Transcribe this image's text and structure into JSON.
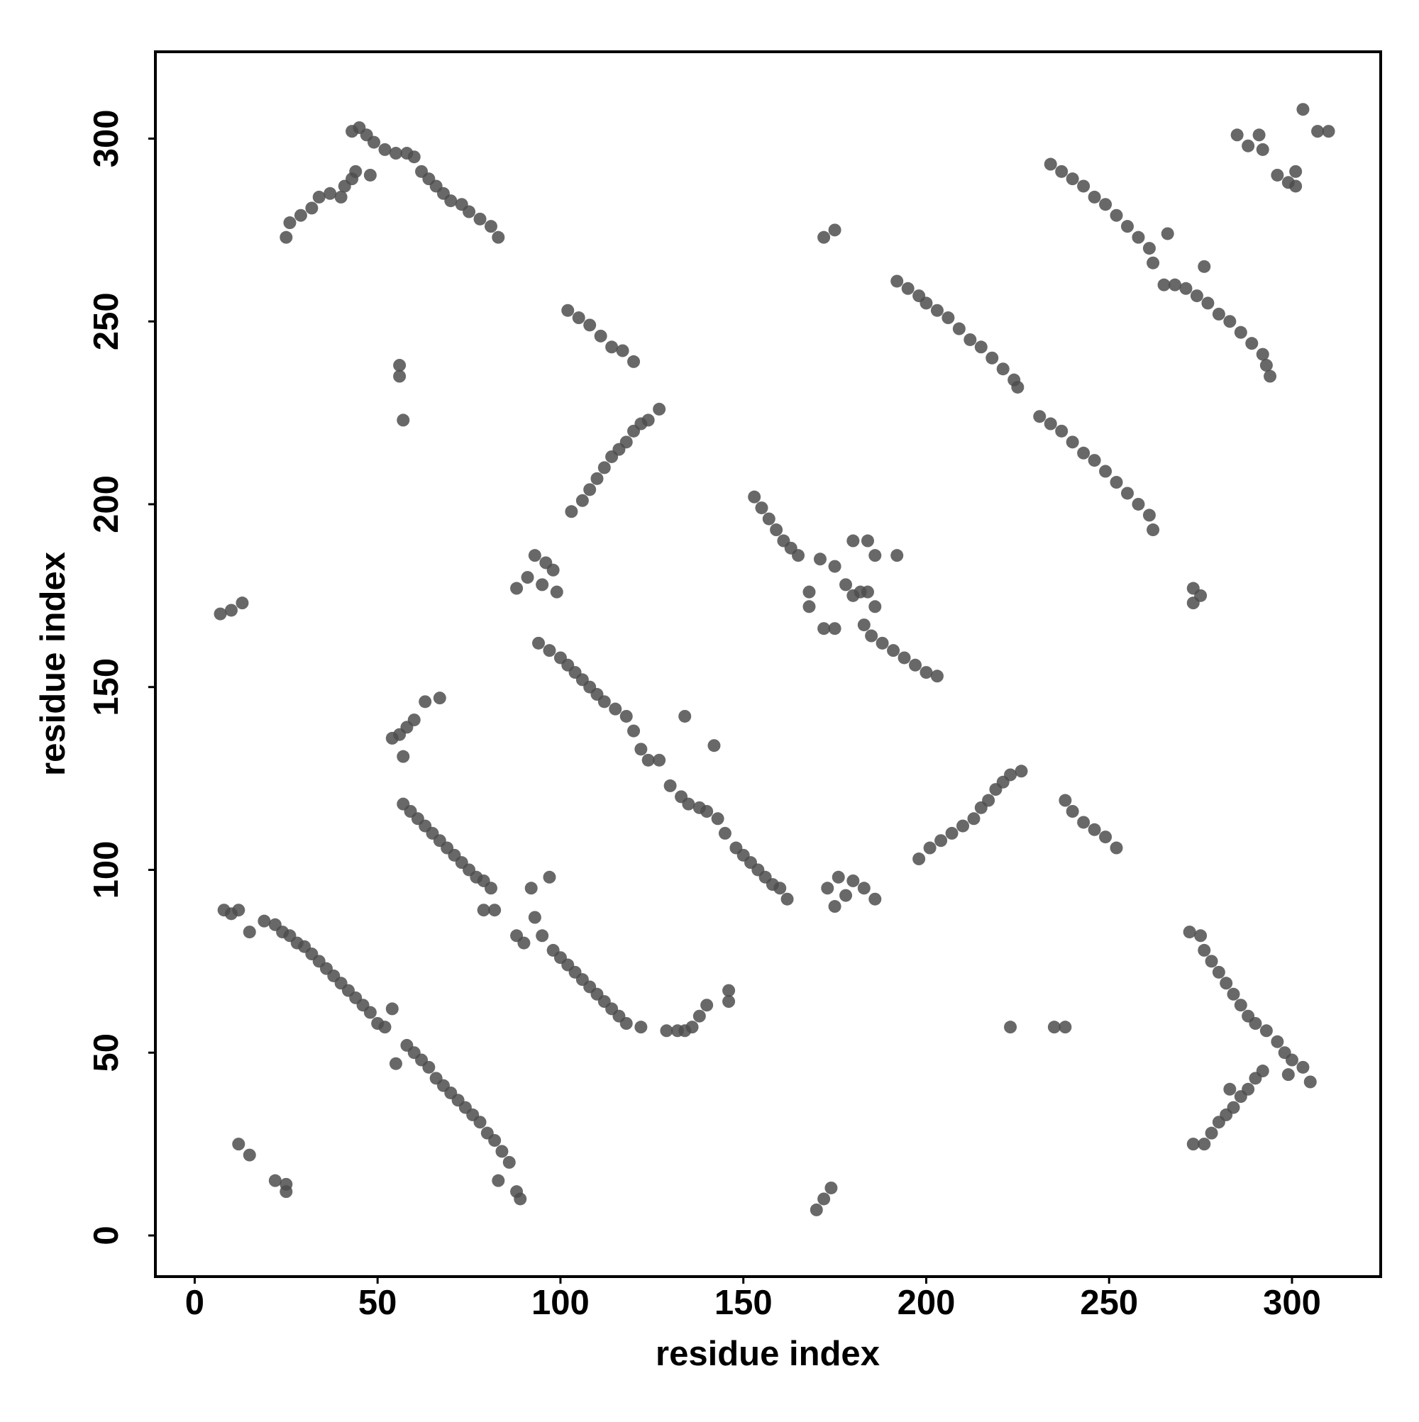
{
  "chart_data": {
    "type": "scatter",
    "xlabel": "residue index",
    "ylabel": "residue index",
    "x": [
      8,
      10,
      12,
      15,
      19,
      22,
      24,
      26,
      28,
      30,
      32,
      34,
      36,
      38,
      40,
      42,
      44,
      46,
      48,
      50,
      52,
      54,
      55,
      58,
      60,
      62,
      64,
      66,
      68,
      70,
      72,
      74,
      76,
      78,
      80,
      82,
      84,
      86,
      83,
      88,
      89,
      12,
      15,
      22,
      25,
      25,
      7,
      10,
      13,
      57,
      59,
      61,
      63,
      65,
      67,
      69,
      71,
      73,
      75,
      77,
      79,
      81,
      82,
      79,
      54,
      56,
      58,
      60,
      63,
      67,
      57,
      88,
      90,
      93,
      95,
      98,
      100,
      102,
      104,
      106,
      108,
      110,
      112,
      114,
      116,
      118,
      122,
      97,
      92,
      129,
      132,
      134,
      136,
      138,
      140,
      146,
      146,
      94,
      97,
      100,
      102,
      104,
      106,
      108,
      110,
      112,
      115,
      118,
      120,
      122,
      124,
      127,
      130,
      133,
      135,
      138,
      140,
      143,
      145,
      148,
      150,
      152,
      154,
      156,
      158,
      160,
      162,
      134,
      142,
      88,
      91,
      93,
      96,
      98,
      95,
      99,
      103,
      106,
      108,
      110,
      112,
      114,
      116,
      118,
      120,
      122,
      124,
      127,
      102,
      105,
      108,
      111,
      114,
      117,
      120,
      56,
      56,
      57,
      25,
      26,
      29,
      32,
      34,
      37,
      40,
      41,
      43,
      44,
      43,
      45,
      47,
      49,
      52,
      55,
      58,
      60,
      62,
      64,
      66,
      68,
      70,
      73,
      75,
      78,
      81,
      83,
      48,
      153,
      155,
      157,
      159,
      161,
      163,
      165,
      168,
      168,
      172,
      175,
      171,
      175,
      178,
      180,
      182,
      184,
      186,
      180,
      184,
      186,
      192,
      183,
      185,
      188,
      191,
      194,
      197,
      200,
      203,
      172,
      175,
      173,
      176,
      180,
      183,
      186,
      175,
      178,
      170,
      172,
      174,
      198,
      201,
      204,
      207,
      210,
      213,
      215,
      217,
      219,
      221,
      223,
      226,
      238,
      240,
      243,
      246,
      249,
      252,
      223,
      235,
      238,
      192,
      195,
      198,
      200,
      203,
      206,
      209,
      212,
      215,
      218,
      221,
      224,
      225,
      231,
      234,
      237,
      240,
      243,
      246,
      249,
      252,
      255,
      258,
      261,
      262,
      234,
      237,
      240,
      243,
      246,
      249,
      252,
      255,
      258,
      261,
      262,
      266,
      265,
      268,
      271,
      274,
      277,
      280,
      283,
      286,
      289,
      292,
      293,
      294,
      276,
      275,
      273,
      273,
      285,
      288,
      291,
      292,
      296,
      299,
      301,
      301,
      303,
      307,
      310,
      272,
      275,
      276,
      278,
      280,
      282,
      284,
      286,
      288,
      290,
      293,
      296,
      298,
      300,
      303,
      305,
      299,
      273,
      276,
      278,
      280,
      282,
      284,
      286,
      288,
      290,
      292,
      283
    ],
    "values": [
      89,
      88,
      89,
      83,
      86,
      85,
      83,
      82,
      80,
      79,
      77,
      75,
      73,
      71,
      69,
      67,
      65,
      63,
      61,
      58,
      57,
      62,
      47,
      52,
      50,
      48,
      46,
      43,
      41,
      39,
      37,
      35,
      33,
      31,
      28,
      26,
      23,
      20,
      15,
      12,
      10,
      25,
      22,
      15,
      14,
      12,
      170,
      171,
      173,
      118,
      116,
      114,
      112,
      110,
      108,
      106,
      104,
      102,
      100,
      98,
      97,
      95,
      89,
      89,
      136,
      137,
      139,
      141,
      146,
      147,
      131,
      82,
      80,
      87,
      82,
      78,
      76,
      74,
      72,
      70,
      68,
      66,
      64,
      62,
      60,
      58,
      57,
      98,
      95,
      56,
      56,
      56,
      57,
      60,
      63,
      64,
      67,
      162,
      160,
      158,
      156,
      154,
      152,
      150,
      148,
      146,
      144,
      142,
      138,
      133,
      130,
      130,
      123,
      120,
      118,
      117,
      116,
      114,
      110,
      106,
      104,
      102,
      100,
      98,
      96,
      95,
      92,
      142,
      134,
      177,
      180,
      186,
      184,
      182,
      178,
      176,
      198,
      201,
      204,
      207,
      210,
      213,
      215,
      217,
      220,
      222,
      223,
      226,
      253,
      251,
      249,
      246,
      243,
      242,
      239,
      238,
      235,
      223,
      273,
      277,
      279,
      281,
      284,
      285,
      284,
      287,
      289,
      291,
      302,
      303,
      301,
      299,
      297,
      296,
      296,
      295,
      291,
      289,
      287,
      285,
      283,
      282,
      280,
      278,
      276,
      273,
      290,
      202,
      199,
      196,
      193,
      190,
      188,
      186,
      176,
      172,
      166,
      166,
      185,
      183,
      178,
      175,
      176,
      176,
      172,
      190,
      190,
      186,
      186,
      167,
      164,
      162,
      160,
      158,
      156,
      154,
      153,
      273,
      275,
      95,
      98,
      97,
      95,
      92,
      90,
      93,
      7,
      10,
      13,
      103,
      106,
      108,
      110,
      112,
      114,
      117,
      119,
      122,
      124,
      126,
      127,
      119,
      116,
      113,
      111,
      109,
      106,
      57,
      57,
      57,
      261,
      259,
      257,
      255,
      253,
      251,
      248,
      245,
      243,
      240,
      237,
      234,
      232,
      224,
      222,
      220,
      217,
      214,
      212,
      209,
      206,
      203,
      200,
      197,
      193,
      293,
      291,
      289,
      287,
      284,
      282,
      279,
      276,
      273,
      270,
      266,
      274,
      260,
      260,
      259,
      257,
      255,
      252,
      250,
      247,
      244,
      241,
      238,
      235,
      265,
      175,
      173,
      177,
      301,
      298,
      301,
      297,
      290,
      288,
      291,
      287,
      308,
      302,
      302,
      83,
      82,
      78,
      75,
      72,
      69,
      66,
      63,
      60,
      58,
      56,
      53,
      50,
      48,
      46,
      42,
      44,
      25,
      25,
      28,
      31,
      33,
      35,
      38,
      40,
      43,
      45,
      40
    ],
    "color": "#4d4d4d",
    "xlim": [
      -10.75,
      324.25
    ],
    "ylim": [
      -11.25,
      323.75
    ],
    "xticks": [
      0,
      50,
      100,
      150,
      200,
      250,
      300
    ],
    "yticks": [
      0,
      50,
      100,
      150,
      200,
      250,
      300
    ]
  }
}
